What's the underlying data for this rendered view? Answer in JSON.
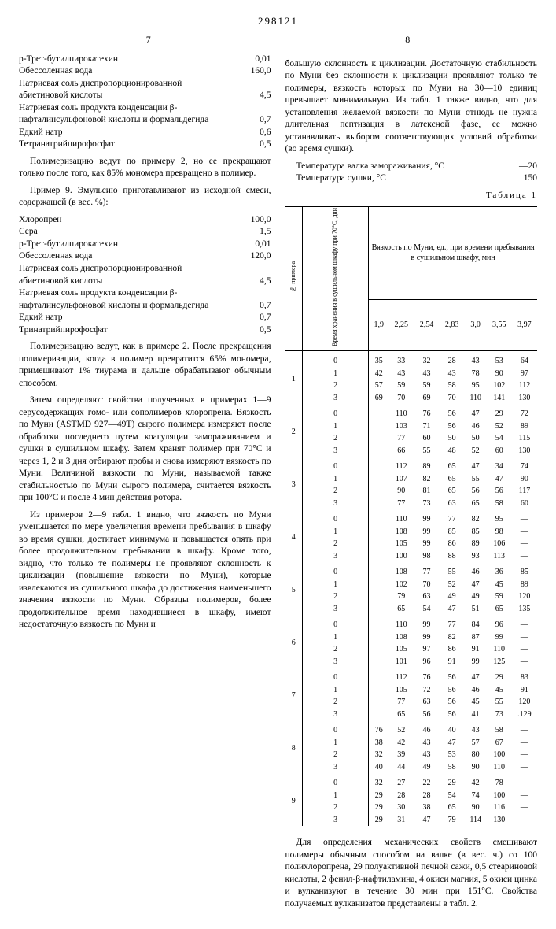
{
  "header": {
    "patent_number": "298121",
    "left_col_num": "7",
    "right_col_num": "8"
  },
  "left_column": {
    "comp1": [
      {
        "label": "р-Трет-бутилпирокатехин",
        "value": "0,01"
      },
      {
        "label": "Обессоленная вода",
        "value": "160,0"
      },
      {
        "label": "Натриевая соль диспропорционированной абиетиновой кислоты",
        "value": "4,5"
      },
      {
        "label": "Натриевая соль продукта конденсации β-нафталинсульфоновой кислоты и формальдегида",
        "value": "0,7"
      },
      {
        "label": "Едкий натр",
        "value": "0,6"
      },
      {
        "label": "Тетранатрийпирофосфат",
        "value": "0,5"
      }
    ],
    "para1": "Полимеризацию ведут по примеру 2, но ее прекращают только после того, как 85% мономера превращено в полимер.",
    "para2": "Пример 9. Эмульсию приготавливают из исходной смеси, содержащей (в вес. %):",
    "comp2": [
      {
        "label": "Хлоропрен",
        "value": "100,0"
      },
      {
        "label": "Сера",
        "value": "1,5"
      },
      {
        "label": "р-Трет-бутилпирокатехин",
        "value": "0,01"
      },
      {
        "label": "Обессоленная вода",
        "value": "120,0"
      },
      {
        "label": "Натриевая соль диспропорционированной абиетиновой кислоты",
        "value": "4,5"
      },
      {
        "label": "Натриевая соль продукта конденсации β-нафталинсульфоновой кислоты и формальдегида",
        "value": "0,7"
      },
      {
        "label": "Едкий натр",
        "value": "0,7"
      },
      {
        "label": "Тринатрийпирофосфат",
        "value": "0,5"
      }
    ],
    "para3": "Полимеризацию ведут, как в примере 2. После прекращения полимеризации, когда в полимер превратится 65% мономера, примешивают 1% тиурама и дальше обрабатывают обычным способом.",
    "para4": "Затем определяют свойства полученных в примерах 1—9 серусодержащих гомо- или сополимеров хлоропрена. Вязкость по Муни (ASTMD 927—49T) сырого полимера измеряют после обработки последнего путем коагуляции замораживанием и сушки в сушильном шкафу. Затем хранят полимер при 70°С и через 1, 2 и 3 дня отбирают пробы и снова измеряют вязкость по Муни. Величиной вязкости по Муни, называемой также стабильностью по Муни сырого полимера, считается вязкость при 100°С и после 4 мин действия ротора.",
    "para5": "Из примеров 2—9 табл. 1 видно, что вязкость по Муни уменьшается по мере увеличения времени пребывания в шкафу во время сушки, достигает минимума и повышается опять при более продолжительном пребывании в шкафу. Кроме того, видно, что только те полимеры не проявляют склонность к циклизации (повышение вязкости по Муни), которые извлекаются из сушильного шкафа до достижения наименьшего значения вязкости по Муни. Образцы полимеров, более продолжительное время находившиеся в шкафу, имеют недостаточную вязкость по Муни и"
  },
  "right_column": {
    "para1": "большую склонность к циклизации. Достаточную стабильность по Муни без склонности к циклизации проявляют только те полимеры, вязкость которых по Муни на 30—10 единиц превышает минимальную. Из табл. 1 также видно, что для установления желаемой вязкости по Муни отнюдь не нужна длительная пептизация в латексной фазе, ее можно устанавливать выбором соответствующих условий обработки (во время сушки).",
    "temp_rows": [
      {
        "label": "Температура валка замораживания, °С",
        "value": "—20"
      },
      {
        "label": "Температура сушки, °С",
        "value": "150"
      }
    ]
  },
  "table1": {
    "caption": "Таблица 1",
    "header_left": "№ примера",
    "header_time": "Время хране­ния в сушиль­ном шкафу при 70°С, дни",
    "header_top": "Вязкость по Муни, ед., при времени пребывания в сушильном шкафу, мин",
    "time_cols": [
      "1,9",
      "2,25",
      "2,54",
      "2,83",
      "3,0",
      "3,55",
      "3,97"
    ],
    "groups": [
      {
        "ex": "1",
        "rows": [
          [
            "0",
            "35",
            "33",
            "32",
            "28",
            "43",
            "53",
            "64"
          ],
          [
            "1",
            "42",
            "43",
            "43",
            "43",
            "78",
            "90",
            "97"
          ],
          [
            "2",
            "57",
            "59",
            "59",
            "58",
            "95",
            "102",
            "112"
          ],
          [
            "3",
            "69",
            "70",
            "69",
            "70",
            "110",
            "141",
            "130"
          ]
        ]
      },
      {
        "ex": "2",
        "rows": [
          [
            "0",
            "",
            "110",
            "76",
            "56",
            "47",
            "29",
            "72"
          ],
          [
            "1",
            "",
            "103",
            "71",
            "56",
            "46",
            "52",
            "89"
          ],
          [
            "2",
            "",
            "77",
            "60",
            "50",
            "50",
            "54",
            "115"
          ],
          [
            "3",
            "",
            "66",
            "55",
            "48",
            "52",
            "60",
            "130"
          ]
        ]
      },
      {
        "ex": "3",
        "rows": [
          [
            "0",
            "",
            "112",
            "89",
            "65",
            "47",
            "34",
            "74"
          ],
          [
            "1",
            "",
            "107",
            "82",
            "65",
            "55",
            "47",
            "90"
          ],
          [
            "2",
            "",
            "90",
            "81",
            "65",
            "56",
            "56",
            "117"
          ],
          [
            "3",
            "",
            "77",
            "73",
            "63",
            "65",
            "58",
            "60"
          ]
        ]
      },
      {
        "ex": "4",
        "rows": [
          [
            "0",
            "",
            "110",
            "99",
            "77",
            "82",
            "95",
            "—"
          ],
          [
            "1",
            "",
            "108",
            "99",
            "85",
            "85",
            "98",
            "—"
          ],
          [
            "2",
            "",
            "105",
            "99",
            "86",
            "89",
            "106",
            "—"
          ],
          [
            "3",
            "",
            "100",
            "98",
            "88",
            "93",
            "113",
            "—"
          ]
        ]
      },
      {
        "ex": "5",
        "rows": [
          [
            "0",
            "",
            "108",
            "77",
            "55",
            "46",
            "36",
            "85"
          ],
          [
            "1",
            "",
            "102",
            "70",
            "52",
            "47",
            "45",
            "89"
          ],
          [
            "2",
            "",
            "79",
            "63",
            "49",
            "49",
            "59",
            "120"
          ],
          [
            "3",
            "",
            "65",
            "54",
            "47",
            "51",
            "65",
            "135"
          ]
        ]
      },
      {
        "ex": "6",
        "rows": [
          [
            "0",
            "",
            "110",
            "99",
            "77",
            "84",
            "96",
            "—"
          ],
          [
            "1",
            "",
            "108",
            "99",
            "82",
            "87",
            "99",
            "—"
          ],
          [
            "2",
            "",
            "105",
            "97",
            "86",
            "91",
            "110",
            "—"
          ],
          [
            "3",
            "",
            "101",
            "96",
            "91",
            "99",
            "125",
            "—"
          ]
        ]
      },
      {
        "ex": "7",
        "rows": [
          [
            "0",
            "",
            "112",
            "76",
            "56",
            "47",
            "29",
            "83"
          ],
          [
            "1",
            "",
            "105",
            "72",
            "56",
            "46",
            "45",
            "91"
          ],
          [
            "2",
            "",
            "77",
            "63",
            "56",
            "45",
            "55",
            "120"
          ],
          [
            "3",
            "",
            "65",
            "56",
            "56",
            "41",
            "73",
            ".129"
          ]
        ]
      },
      {
        "ex": "8",
        "rows": [
          [
            "0",
            "76",
            "52",
            "46",
            "40",
            "43",
            "58",
            "—"
          ],
          [
            "1",
            "38",
            "42",
            "43",
            "47",
            "57",
            "67",
            "—"
          ],
          [
            "2",
            "32",
            "39",
            "43",
            "53",
            "80",
            "100",
            "—"
          ],
          [
            "3",
            "40",
            "44",
            "49",
            "58",
            "90",
            "110",
            "—"
          ]
        ]
      },
      {
        "ex": "9",
        "rows": [
          [
            "0",
            "32",
            "27",
            "22",
            "29",
            "42",
            "78",
            "—"
          ],
          [
            "1",
            "29",
            "28",
            "28",
            "54",
            "74",
            "100",
            "—"
          ],
          [
            "2",
            "29",
            "30",
            "38",
            "65",
            "90",
            "116",
            "—"
          ],
          [
            "3",
            "29",
            "31",
            "47",
            "79",
            "114",
            "130",
            "—"
          ]
        ]
      }
    ]
  },
  "footer_para": "Для определения механических свойств смешивают полимеры обычным способом на валке (в вес. ч.) со 100 полихлоропрена, 29 полуактивной печной сажи, 0,5 стеариновой кислоты, 2 фенил-β-нафтиламина, 4 окиси магния, 5 окиси цинка и вулканизуют в течение 30 мин при 151°С. Свойства получаемых вулканизатов представлены в табл. 2."
}
